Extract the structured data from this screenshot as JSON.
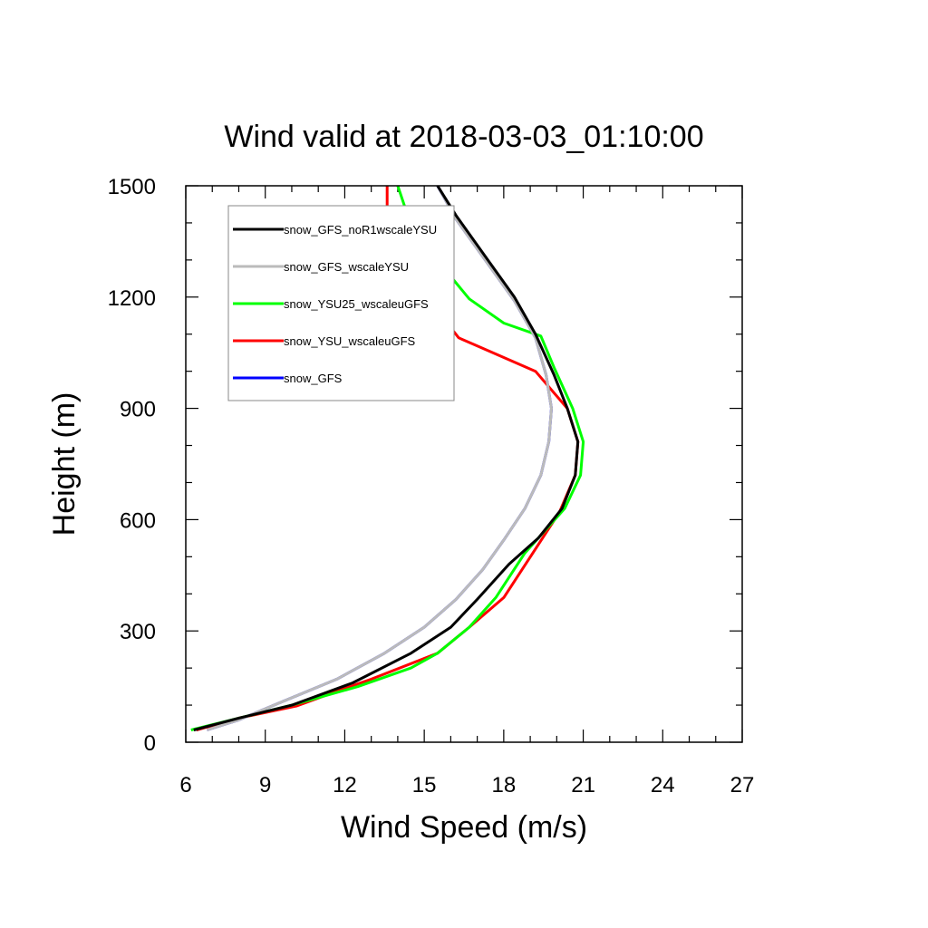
{
  "chart_data": {
    "type": "line",
    "title": "Wind valid at 2018-03-03_01:10:00",
    "xlabel": "Wind Speed (m/s)",
    "ylabel": "Height (m)",
    "xlim": [
      6,
      27
    ],
    "ylim": [
      0,
      1500
    ],
    "xticks": [
      "6",
      "9",
      "12",
      "15",
      "18",
      "21",
      "24",
      "27"
    ],
    "yticks": [
      "0",
      "300",
      "600",
      "900",
      "1200",
      "1500"
    ],
    "legend_position": "top-left",
    "series": [
      {
        "name": "snow_GFS",
        "color": "#0000ff",
        "points": [
          [
            6.8,
            33
          ],
          [
            8.0,
            60
          ],
          [
            9.5,
            105
          ],
          [
            11.7,
            170
          ],
          [
            13.5,
            240
          ],
          [
            15.0,
            310
          ],
          [
            16.2,
            385
          ],
          [
            17.2,
            465
          ],
          [
            18.0,
            545
          ],
          [
            18.8,
            630
          ],
          [
            19.4,
            720
          ],
          [
            19.7,
            810
          ],
          [
            19.8,
            900
          ],
          [
            19.6,
            990
          ],
          [
            19.2,
            1090
          ],
          [
            18.4,
            1190
          ],
          [
            17.3,
            1300
          ],
          [
            16.2,
            1410
          ],
          [
            15.5,
            1500
          ]
        ]
      },
      {
        "name": "snow_YSU_wscaleuGFS",
        "color": "#ff0000",
        "points": [
          [
            6.4,
            33
          ],
          [
            8.0,
            65
          ],
          [
            10.2,
            98
          ],
          [
            11.8,
            140
          ],
          [
            13.0,
            170
          ],
          [
            15.5,
            240
          ],
          [
            16.7,
            310
          ],
          [
            18.0,
            390
          ],
          [
            19.1,
            510
          ],
          [
            20.1,
            620
          ],
          [
            20.7,
            720
          ],
          [
            20.8,
            810
          ],
          [
            20.4,
            900
          ],
          [
            19.2,
            1000
          ],
          [
            16.3,
            1090
          ],
          [
            15.2,
            1190
          ],
          [
            14.4,
            1260
          ],
          [
            13.8,
            1370
          ],
          [
            13.6,
            1420
          ],
          [
            13.6,
            1500
          ]
        ]
      },
      {
        "name": "snow_YSU25_wscaleuGFS",
        "color": "#00ff00",
        "points": [
          [
            6.2,
            33
          ],
          [
            8.0,
            65
          ],
          [
            10.0,
            100
          ],
          [
            12.5,
            150
          ],
          [
            14.5,
            200
          ],
          [
            15.5,
            240
          ],
          [
            16.7,
            310
          ],
          [
            17.7,
            390
          ],
          [
            18.8,
            510
          ],
          [
            20.3,
            630
          ],
          [
            20.9,
            720
          ],
          [
            21.0,
            810
          ],
          [
            20.6,
            900
          ],
          [
            19.9,
            1010
          ],
          [
            19.4,
            1095
          ],
          [
            18.0,
            1130
          ],
          [
            16.7,
            1195
          ],
          [
            15.6,
            1290
          ],
          [
            14.9,
            1360
          ],
          [
            14.4,
            1415
          ],
          [
            14.0,
            1500
          ]
        ]
      },
      {
        "name": "snow_GFS_wscaleYSU",
        "color": "#bbbbbb",
        "points": [
          [
            6.8,
            33
          ],
          [
            8.0,
            60
          ],
          [
            9.5,
            105
          ],
          [
            11.7,
            170
          ],
          [
            13.5,
            240
          ],
          [
            15.0,
            310
          ],
          [
            16.2,
            385
          ],
          [
            17.2,
            465
          ],
          [
            18.0,
            545
          ],
          [
            18.8,
            630
          ],
          [
            19.4,
            720
          ],
          [
            19.7,
            810
          ],
          [
            19.8,
            900
          ],
          [
            19.6,
            990
          ],
          [
            19.2,
            1090
          ],
          [
            18.4,
            1190
          ],
          [
            17.3,
            1300
          ],
          [
            16.2,
            1410
          ],
          [
            15.5,
            1500
          ]
        ]
      },
      {
        "name": "snow_GFS_noR1wscaleYSU",
        "color": "#000000",
        "points": [
          [
            6.3,
            33
          ],
          [
            8.0,
            65
          ],
          [
            10.0,
            100
          ],
          [
            12.3,
            160
          ],
          [
            14.5,
            240
          ],
          [
            16.0,
            310
          ],
          [
            17.0,
            385
          ],
          [
            18.2,
            480
          ],
          [
            19.3,
            550
          ],
          [
            20.2,
            630
          ],
          [
            20.7,
            720
          ],
          [
            20.8,
            810
          ],
          [
            20.4,
            900
          ],
          [
            19.9,
            990
          ],
          [
            19.2,
            1100
          ],
          [
            18.4,
            1200
          ],
          [
            17.4,
            1300
          ],
          [
            16.2,
            1420
          ],
          [
            15.5,
            1500
          ]
        ]
      }
    ],
    "legend_order": [
      "snow_GFS_noR1wscaleYSU",
      "snow_GFS_wscaleYSU",
      "snow_YSU25_wscaleuGFS",
      "snow_YSU_wscaleuGFS",
      "snow_GFS"
    ]
  }
}
